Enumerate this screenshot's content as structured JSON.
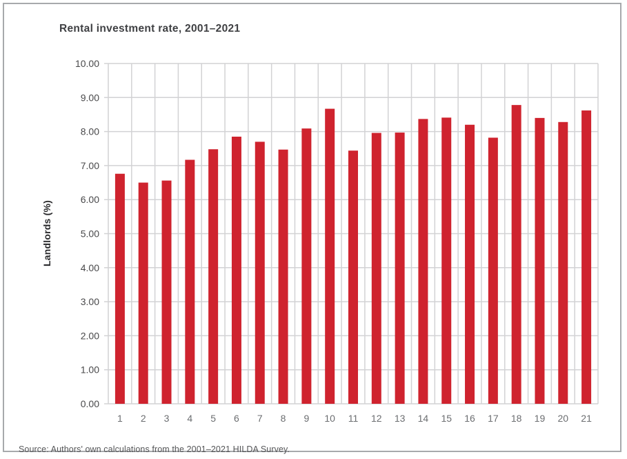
{
  "title": "Rental investment rate, 2001–2021",
  "source": "Source: Authors' own calculations from the 2001–2021 HILDA Survey.",
  "colors": {
    "bar": "#cf232e",
    "grid": "#d2d2d4",
    "frame_border": "#a7a9ac",
    "title_text": "#3f4043",
    "y_tick_text": "#48484a",
    "x_tick_text": "#6b6d70",
    "source_text": "#545557"
  },
  "chart_data": {
    "type": "bar",
    "title": "Rental investment rate, 2001–2021",
    "categories": [
      "1",
      "2",
      "3",
      "4",
      "5",
      "6",
      "7",
      "8",
      "9",
      "10",
      "11",
      "12",
      "13",
      "14",
      "15",
      "16",
      "17",
      "18",
      "19",
      "20",
      "21"
    ],
    "values": [
      6.76,
      6.5,
      6.56,
      7.17,
      7.48,
      7.85,
      7.7,
      7.47,
      8.09,
      8.67,
      7.44,
      7.96,
      7.97,
      8.37,
      8.41,
      8.2,
      7.82,
      8.78,
      8.4,
      8.28,
      8.62
    ],
    "xlabel": "",
    "ylabel": "Landlords (%)",
    "ylim": [
      0,
      10
    ],
    "ytick_step": 1,
    "ytick_labels": [
      "0.00",
      "1.00",
      "2.00",
      "3.00",
      "4.00",
      "5.00",
      "6.00",
      "7.00",
      "8.00",
      "9.00",
      "10.00"
    ],
    "grid": "both",
    "legend": false,
    "bar_color": "#cf232e"
  }
}
